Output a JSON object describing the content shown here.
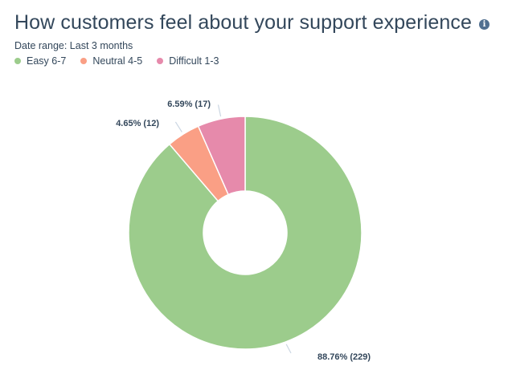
{
  "header": {
    "title": "How customers feel about your support experience",
    "info_icon": "info-icon",
    "date_range": "Date range: Last 3 months"
  },
  "legend": [
    {
      "label": "Easy 6-7",
      "color": "#9ccc8c"
    },
    {
      "label": "Neutral 4-5",
      "color": "#fa9f85"
    },
    {
      "label": "Difficult 1-3",
      "color": "#e68aab"
    }
  ],
  "chart_data": {
    "type": "pie",
    "donut": true,
    "categories": [
      "Easy 6-7",
      "Neutral 4-5",
      "Difficult 1-3"
    ],
    "values": [
      229,
      12,
      17
    ],
    "percentages": [
      88.76,
      4.65,
      6.59
    ],
    "labels": [
      "88.76% (229)",
      "4.65% (12)",
      "6.59% (17)"
    ],
    "colors": [
      "#9ccc8c",
      "#fa9f85",
      "#e68aab"
    ],
    "legend_position": "top-left"
  }
}
